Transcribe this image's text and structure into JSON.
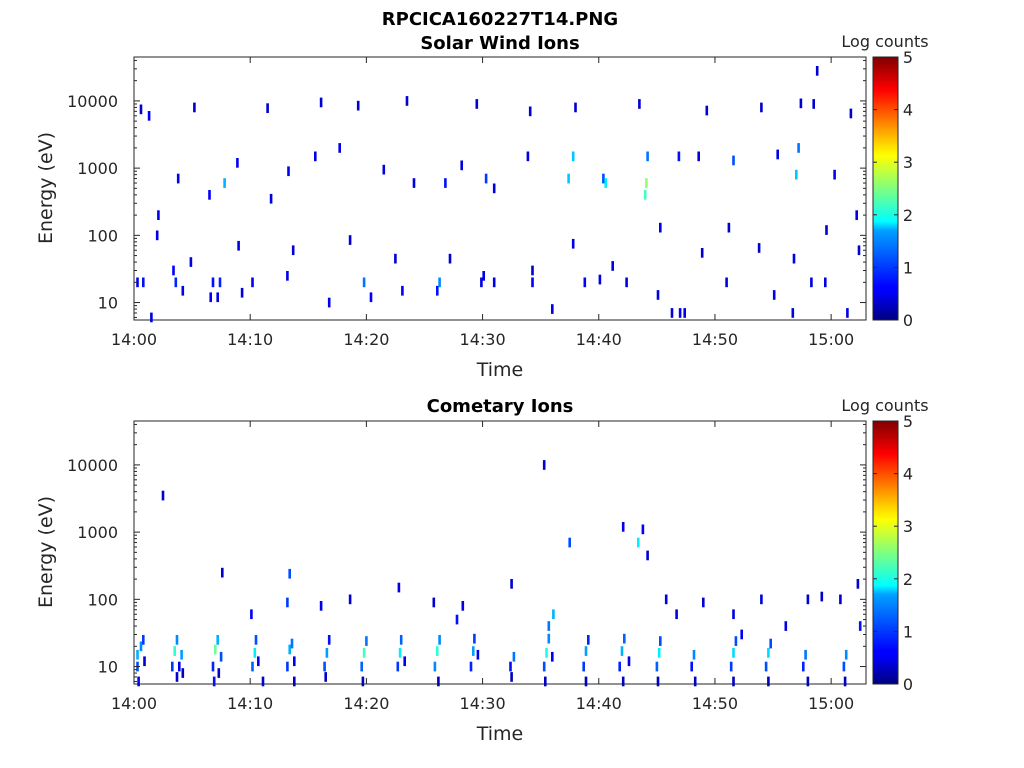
{
  "figure": {
    "title": "RPCICA160227T14.PNG"
  },
  "chart_data": [
    {
      "type": "heatmap",
      "title": "Solar Wind Ions",
      "xlabel": "Time",
      "ylabel": "Energy (eV)",
      "y_scale": "log",
      "ylim": [
        5.5,
        45000
      ],
      "xlim": [
        "14:00",
        "15:03"
      ],
      "x_ticks": [
        "14:00",
        "14:10",
        "14:20",
        "14:30",
        "14:40",
        "14:50",
        "15:00"
      ],
      "y_ticks": [
        "10",
        "100",
        "1000",
        "10000"
      ],
      "colorbar": {
        "label": "Log counts",
        "range": [
          0,
          5
        ],
        "ticks": [
          "0",
          "1",
          "2",
          "3",
          "4",
          "5"
        ],
        "colormap": "jet"
      },
      "cells": [
        [
          0.3,
          20,
          0.6
        ],
        [
          0.8,
          20,
          0.7
        ],
        [
          1.5,
          6,
          0.5
        ],
        [
          3.4,
          30,
          0.6
        ],
        [
          3.6,
          20,
          0.8
        ],
        [
          4.2,
          15,
          0.5
        ],
        [
          6.6,
          12,
          0.6
        ],
        [
          6.8,
          20,
          0.7
        ],
        [
          7.2,
          12,
          0.5
        ],
        [
          7.4,
          20,
          0.8
        ],
        [
          9.3,
          14,
          0.5
        ],
        [
          10.2,
          20,
          0.6
        ],
        [
          13.2,
          25,
          0.5
        ],
        [
          16.8,
          10,
          0.5
        ],
        [
          19.8,
          20,
          1.2
        ],
        [
          20.4,
          12,
          0.6
        ],
        [
          23.1,
          15,
          0.6
        ],
        [
          26.1,
          15,
          0.7
        ],
        [
          26.3,
          20,
          1.3
        ],
        [
          29.9,
          20,
          0.5
        ],
        [
          31.0,
          20,
          0.5
        ],
        [
          34.3,
          20,
          0.6
        ],
        [
          36.0,
          8,
          0.5
        ],
        [
          38.8,
          20,
          0.6
        ],
        [
          40.1,
          22,
          0.5
        ],
        [
          42.4,
          20,
          0.5
        ],
        [
          45.1,
          13,
          0.5
        ],
        [
          46.3,
          7,
          0.5
        ],
        [
          47.0,
          7,
          0.6
        ],
        [
          47.4,
          7,
          0.5
        ],
        [
          51.0,
          20,
          0.5
        ],
        [
          55.1,
          13,
          0.6
        ],
        [
          56.7,
          7,
          0.5
        ],
        [
          58.3,
          20,
          0.5
        ],
        [
          59.5,
          20,
          0.5
        ],
        [
          61.4,
          7,
          0.5
        ],
        [
          1.3,
          6000,
          0.6
        ],
        [
          2.1,
          200,
          0.6
        ],
        [
          3.8,
          700,
          0.5
        ],
        [
          6.5,
          400,
          0.6
        ],
        [
          7.8,
          600,
          1.5
        ],
        [
          8.9,
          1200,
          0.6
        ],
        [
          11.8,
          350,
          0.5
        ],
        [
          13.3,
          900,
          0.6
        ],
        [
          15.6,
          1500,
          0.5
        ],
        [
          17.7,
          2000,
          0.5
        ],
        [
          21.5,
          950,
          0.5
        ],
        [
          24.1,
          600,
          0.5
        ],
        [
          26.8,
          600,
          0.7
        ],
        [
          28.2,
          1100,
          0.5
        ],
        [
          30.3,
          700,
          0.9
        ],
        [
          31.0,
          500,
          0.5
        ],
        [
          33.9,
          1500,
          0.5
        ],
        [
          37.4,
          700,
          1.6
        ],
        [
          37.8,
          1500,
          1.6
        ],
        [
          40.4,
          700,
          1.0
        ],
        [
          40.6,
          600,
          1.8
        ],
        [
          44.0,
          400,
          2.2
        ],
        [
          44.1,
          600,
          2.6
        ],
        [
          44.2,
          1500,
          1.2
        ],
        [
          46.9,
          1500,
          0.7
        ],
        [
          48.6,
          1500,
          0.5
        ],
        [
          51.6,
          1300,
          1.0
        ],
        [
          55.4,
          1600,
          0.5
        ],
        [
          57.0,
          800,
          1.6
        ],
        [
          57.2,
          2000,
          1.2
        ],
        [
          60.3,
          800,
          0.6
        ],
        [
          62.2,
          200,
          0.5
        ],
        [
          0.6,
          7500,
          0.4
        ],
        [
          5.2,
          8000,
          0.4
        ],
        [
          11.5,
          7800,
          0.4
        ],
        [
          16.1,
          9500,
          0.4
        ],
        [
          19.3,
          8500,
          0.4
        ],
        [
          23.5,
          10000,
          0.4
        ],
        [
          29.5,
          9000,
          0.4
        ],
        [
          34.1,
          7000,
          0.4
        ],
        [
          38.0,
          8000,
          0.4
        ],
        [
          43.5,
          9000,
          0.4
        ],
        [
          49.3,
          7200,
          0.4
        ],
        [
          54.0,
          8000,
          0.4
        ],
        [
          57.4,
          9200,
          0.4
        ],
        [
          58.5,
          9000,
          0.4
        ],
        [
          58.8,
          28000,
          0.4
        ],
        [
          61.7,
          6500,
          0.4
        ],
        [
          2.0,
          100,
          0.5
        ],
        [
          4.9,
          40,
          0.5
        ],
        [
          9.0,
          70,
          0.5
        ],
        [
          13.7,
          60,
          0.4
        ],
        [
          18.6,
          85,
          0.4
        ],
        [
          22.5,
          45,
          0.4
        ],
        [
          27.2,
          45,
          0.4
        ],
        [
          30.1,
          25,
          0.5
        ],
        [
          34.3,
          30,
          0.4
        ],
        [
          37.8,
          75,
          0.5
        ],
        [
          41.2,
          35,
          0.5
        ],
        [
          45.3,
          130,
          0.5
        ],
        [
          48.9,
          55,
          0.4
        ],
        [
          51.2,
          130,
          0.4
        ],
        [
          53.8,
          65,
          0.4
        ],
        [
          56.8,
          45,
          0.5
        ],
        [
          59.6,
          120,
          0.4
        ],
        [
          62.4,
          60,
          0.4
        ]
      ]
    },
    {
      "type": "heatmap",
      "title": "Cometary Ions",
      "xlabel": "Time",
      "ylabel": "Energy (eV)",
      "y_scale": "log",
      "ylim": [
        5.5,
        45000
      ],
      "xlim": [
        "14:00",
        "15:03"
      ],
      "x_ticks": [
        "14:00",
        "14:10",
        "14:20",
        "14:30",
        "14:40",
        "14:50",
        "15:00"
      ],
      "y_ticks": [
        "10",
        "100",
        "1000",
        "10000"
      ],
      "colorbar": {
        "label": "Log counts",
        "range": [
          0,
          5
        ],
        "ticks": [
          "0",
          "1",
          "2",
          "3",
          "4",
          "5"
        ],
        "colormap": "jet"
      },
      "cells": [
        [
          0.3,
          10,
          1.0
        ],
        [
          0.3,
          15,
          1.5
        ],
        [
          0.6,
          20,
          1.3
        ],
        [
          0.8,
          25,
          0.9
        ],
        [
          0.9,
          12,
          0.4
        ],
        [
          3.3,
          10,
          0.9
        ],
        [
          3.5,
          17,
          2.1
        ],
        [
          3.7,
          25,
          1.3
        ],
        [
          3.9,
          10,
          0.6
        ],
        [
          4.1,
          15,
          1.4
        ],
        [
          4.2,
          8,
          0.3
        ],
        [
          6.8,
          10,
          0.8
        ],
        [
          7.0,
          18,
          2.4
        ],
        [
          7.2,
          25,
          1.5
        ],
        [
          7.3,
          8,
          0.4
        ],
        [
          7.5,
          14,
          1.0
        ],
        [
          10.2,
          10,
          1.1
        ],
        [
          10.4,
          16,
          1.8
        ],
        [
          10.5,
          25,
          1.0
        ],
        [
          10.7,
          12,
          0.6
        ],
        [
          13.2,
          10,
          0.9
        ],
        [
          13.4,
          18,
          1.5
        ],
        [
          13.6,
          22,
          1.2
        ],
        [
          13.8,
          12,
          0.5
        ],
        [
          16.4,
          10,
          1.0
        ],
        [
          16.6,
          16,
          1.4
        ],
        [
          16.8,
          25,
          0.7
        ],
        [
          19.6,
          10,
          1.1
        ],
        [
          19.8,
          16,
          2.2
        ],
        [
          20.0,
          24,
          1.2
        ],
        [
          22.7,
          10,
          0.9
        ],
        [
          22.9,
          16,
          1.8
        ],
        [
          23.0,
          25,
          1.1
        ],
        [
          23.3,
          12,
          0.5
        ],
        [
          25.9,
          10,
          1.3
        ],
        [
          26.1,
          17,
          2.1
        ],
        [
          26.3,
          25,
          1.3
        ],
        [
          29.0,
          10,
          0.8
        ],
        [
          29.2,
          17,
          1.4
        ],
        [
          29.3,
          26,
          0.9
        ],
        [
          29.6,
          15,
          0.5
        ],
        [
          32.4,
          10,
          0.7
        ],
        [
          32.7,
          14,
          1.2
        ],
        [
          35.3,
          10,
          1.0
        ],
        [
          35.5,
          16,
          2.0
        ],
        [
          35.7,
          26,
          1.3
        ],
        [
          36.0,
          14,
          0.6
        ],
        [
          38.7,
          10,
          0.9
        ],
        [
          38.9,
          17,
          1.4
        ],
        [
          39.1,
          25,
          0.8
        ],
        [
          41.8,
          10,
          0.8
        ],
        [
          42.0,
          17,
          1.5
        ],
        [
          42.2,
          26,
          1.1
        ],
        [
          42.6,
          12,
          0.5
        ],
        [
          45.0,
          10,
          1.1
        ],
        [
          45.2,
          16,
          1.8
        ],
        [
          45.3,
          24,
          1.0
        ],
        [
          48.0,
          10,
          0.7
        ],
        [
          48.2,
          15,
          1.3
        ],
        [
          51.4,
          10,
          0.9
        ],
        [
          51.6,
          16,
          1.7
        ],
        [
          51.8,
          24,
          1.0
        ],
        [
          54.4,
          10,
          1.0
        ],
        [
          54.6,
          16,
          1.7
        ],
        [
          54.8,
          22,
          1.0
        ],
        [
          57.6,
          10,
          0.8
        ],
        [
          57.8,
          15,
          1.2
        ],
        [
          61.1,
          10,
          1.0
        ],
        [
          61.3,
          15,
          1.3
        ],
        [
          0.4,
          6,
          0.6
        ],
        [
          3.7,
          7,
          0.4
        ],
        [
          6.9,
          6,
          0.7
        ],
        [
          11.1,
          6,
          0.4
        ],
        [
          13.8,
          6,
          0.3
        ],
        [
          16.5,
          7,
          0.4
        ],
        [
          19.7,
          6,
          0.3
        ],
        [
          26.2,
          6,
          0.3
        ],
        [
          32.5,
          7,
          0.3
        ],
        [
          35.4,
          6,
          0.3
        ],
        [
          38.9,
          6,
          0.3
        ],
        [
          42.1,
          6,
          0.3
        ],
        [
          45.1,
          6,
          0.3
        ],
        [
          48.3,
          6,
          0.3
        ],
        [
          51.6,
          6,
          0.3
        ],
        [
          54.6,
          6,
          0.3
        ],
        [
          58.0,
          6,
          0.3
        ],
        [
          61.2,
          6,
          0.3
        ],
        [
          2.5,
          3500,
          0.4
        ],
        [
          7.6,
          250,
          0.4
        ],
        [
          10.1,
          60,
          0.6
        ],
        [
          13.2,
          90,
          0.9
        ],
        [
          13.4,
          240,
          1.0
        ],
        [
          16.1,
          80,
          0.5
        ],
        [
          18.6,
          100,
          0.4
        ],
        [
          22.8,
          150,
          0.5
        ],
        [
          25.8,
          90,
          0.4
        ],
        [
          27.8,
          50,
          0.7
        ],
        [
          28.3,
          80,
          0.5
        ],
        [
          32.5,
          170,
          0.4
        ],
        [
          35.3,
          10000,
          0.4
        ],
        [
          35.7,
          40,
          1.2
        ],
        [
          36.1,
          60,
          1.5
        ],
        [
          37.5,
          700,
          1.0
        ],
        [
          42.1,
          1200,
          0.5
        ],
        [
          43.4,
          700,
          1.8
        ],
        [
          43.8,
          1100,
          0.6
        ],
        [
          44.2,
          450,
          0.4
        ],
        [
          45.8,
          100,
          0.5
        ],
        [
          46.7,
          60,
          0.5
        ],
        [
          49.0,
          90,
          0.4
        ],
        [
          51.6,
          60,
          0.5
        ],
        [
          52.3,
          30,
          0.6
        ],
        [
          54.0,
          100,
          0.5
        ],
        [
          56.1,
          40,
          0.5
        ],
        [
          58.0,
          100,
          0.4
        ],
        [
          59.2,
          110,
          0.4
        ],
        [
          60.8,
          100,
          0.4
        ],
        [
          62.3,
          170,
          0.4
        ],
        [
          62.5,
          40,
          0.7
        ]
      ]
    }
  ]
}
